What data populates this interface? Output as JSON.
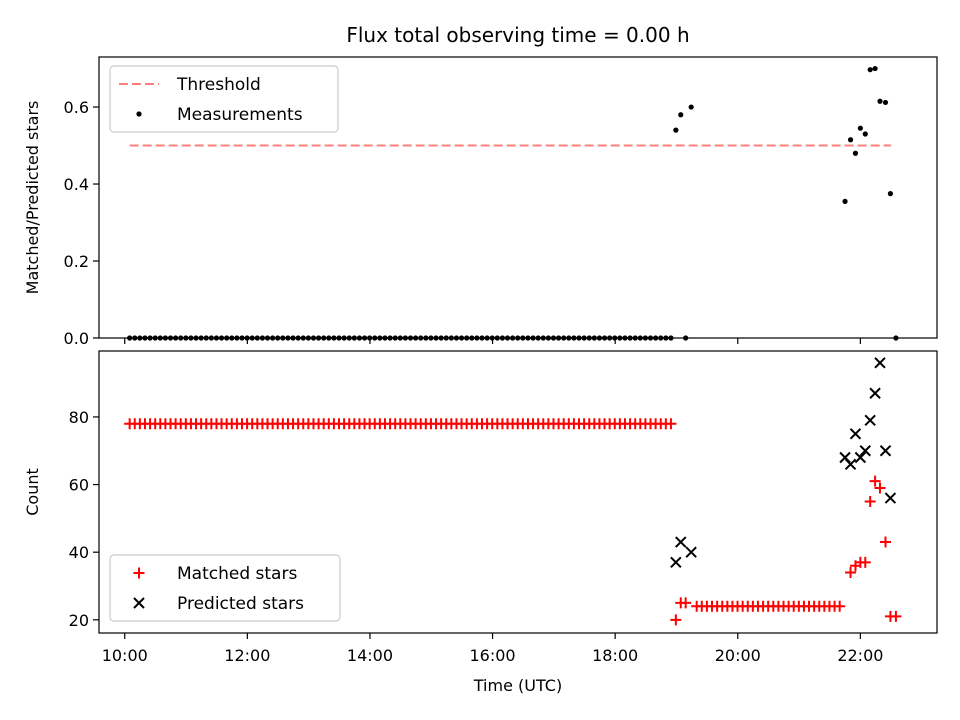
{
  "title": "Flux total observing time = 0.00 h",
  "chart_data": [
    {
      "type": "scatter",
      "ylabel": "Matched/Predicted stars",
      "xlim": [
        9.58,
        23.25
      ],
      "ylim": [
        0.0,
        0.73
      ],
      "yticks": [
        0.0,
        0.2,
        0.4,
        0.6
      ],
      "ytick_labels": [
        "0.0",
        "0.2",
        "0.4",
        "0.6"
      ],
      "xticks": [
        10,
        12,
        14,
        16,
        18,
        20,
        22
      ],
      "xtick_labels": [
        "",
        "",
        "",
        "",
        "",
        "",
        ""
      ],
      "legend_position": "top-left",
      "threshold": {
        "name": "Threshold",
        "value": 0.5,
        "x_range": [
          10.08,
          22.5
        ],
        "color": "#ff7f7f"
      },
      "series": [
        {
          "name": "Measurements",
          "color": "#000000",
          "marker": "dot",
          "flat_run": {
            "x_start": 10.08,
            "x_step": 0.0833,
            "count": 107,
            "y": 0.0
          },
          "points": [
            {
              "x": 18.99,
              "y": 0.54
            },
            {
              "x": 19.07,
              "y": 0.58
            },
            {
              "x": 19.15,
              "y": 0.0
            },
            {
              "x": 19.24,
              "y": 0.6
            },
            {
              "x": 21.75,
              "y": 0.355
            },
            {
              "x": 21.84,
              "y": 0.515
            },
            {
              "x": 21.92,
              "y": 0.48
            },
            {
              "x": 22.0,
              "y": 0.545
            },
            {
              "x": 22.08,
              "y": 0.53
            },
            {
              "x": 22.16,
              "y": 0.697
            },
            {
              "x": 22.24,
              "y": 0.7
            },
            {
              "x": 22.32,
              "y": 0.615
            },
            {
              "x": 22.41,
              "y": 0.612
            },
            {
              "x": 22.49,
              "y": 0.375
            },
            {
              "x": 22.58,
              "y": 0.0
            }
          ]
        }
      ]
    },
    {
      "type": "scatter",
      "xlabel": "Time (UTC)",
      "ylabel": "Count",
      "xlim": [
        9.58,
        23.25
      ],
      "ylim": [
        16.1,
        99.5
      ],
      "yticks": [
        20,
        40,
        60,
        80
      ],
      "ytick_labels": [
        "20",
        "40",
        "60",
        "80"
      ],
      "xticks": [
        10,
        12,
        14,
        16,
        18,
        20,
        22
      ],
      "xtick_labels": [
        "10:00",
        "12:00",
        "14:00",
        "16:00",
        "18:00",
        "20:00",
        "22:00"
      ],
      "legend_position": "bottom-left",
      "series": [
        {
          "name": "Matched stars",
          "color": "#ff0000",
          "marker": "plus",
          "runs": [
            {
              "x_start": 10.08,
              "x_step": 0.0833,
              "count": 107,
              "y": 78
            },
            {
              "x_start": 19.33,
              "x_step": 0.0833,
              "count": 29,
              "y": 24
            }
          ],
          "points": [
            {
              "x": 18.99,
              "y": 20
            },
            {
              "x": 19.07,
              "y": 25
            },
            {
              "x": 19.15,
              "y": 25
            },
            {
              "x": 21.84,
              "y": 34
            },
            {
              "x": 21.92,
              "y": 36
            },
            {
              "x": 22.0,
              "y": 37
            },
            {
              "x": 22.08,
              "y": 37
            },
            {
              "x": 22.16,
              "y": 55
            },
            {
              "x": 22.24,
              "y": 61
            },
            {
              "x": 22.32,
              "y": 59
            },
            {
              "x": 22.41,
              "y": 43
            },
            {
              "x": 22.49,
              "y": 21
            },
            {
              "x": 22.58,
              "y": 21
            }
          ]
        },
        {
          "name": "Predicted stars",
          "color": "#000000",
          "marker": "x",
          "points": [
            {
              "x": 18.99,
              "y": 37
            },
            {
              "x": 19.07,
              "y": 43
            },
            {
              "x": 19.24,
              "y": 40
            },
            {
              "x": 21.75,
              "y": 68
            },
            {
              "x": 21.84,
              "y": 66
            },
            {
              "x": 21.92,
              "y": 75
            },
            {
              "x": 22.0,
              "y": 68
            },
            {
              "x": 22.08,
              "y": 70
            },
            {
              "x": 22.16,
              "y": 79
            },
            {
              "x": 22.24,
              "y": 87
            },
            {
              "x": 22.32,
              "y": 96
            },
            {
              "x": 22.41,
              "y": 70
            },
            {
              "x": 22.49,
              "y": 56
            }
          ]
        }
      ]
    }
  ]
}
